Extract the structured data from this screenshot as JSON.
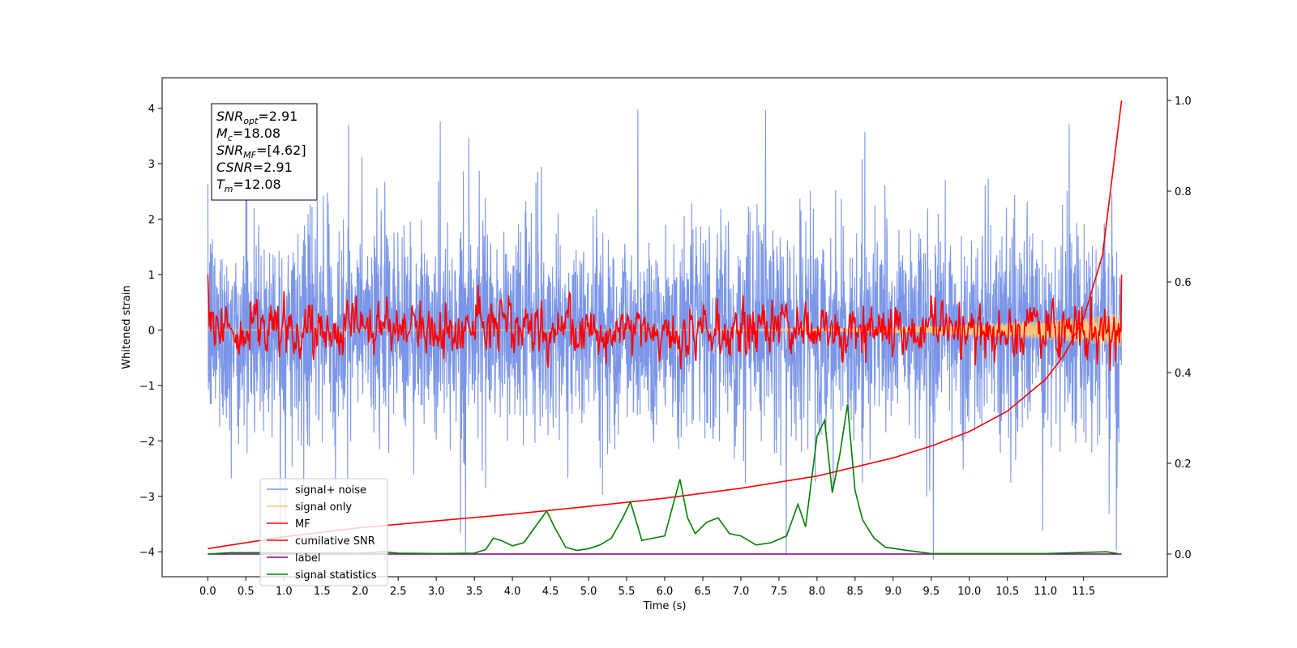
{
  "chart_data": {
    "type": "line",
    "xlabel": "Time (s)",
    "ylabel": "Whitened strain",
    "xlim": [
      -0.6,
      12.6
    ],
    "ylim": [
      -4.45,
      4.55
    ],
    "y2lim": [
      -0.05,
      1.05
    ],
    "x_ticks": [
      "0.0",
      "0.5",
      "1.0",
      "1.5",
      "2.0",
      "2.5",
      "3.0",
      "3.5",
      "4.0",
      "4.5",
      "5.0",
      "5.5",
      "6.0",
      "6.5",
      "7.0",
      "7.5",
      "8.0",
      "8.5",
      "9.0",
      "9.5",
      "10.0",
      "10.5",
      "11.0",
      "11.5"
    ],
    "y_ticks": [
      "4",
      "3",
      "2",
      "1",
      "0",
      "−1",
      "−2",
      "−3",
      "−4"
    ],
    "y2_ticks": [
      "1.0",
      "0.8",
      "0.6",
      "0.4",
      "0.2",
      "0.0"
    ],
    "info_box": [
      {
        "sym": "SNR",
        "sub": "opt",
        "val": "=2.91"
      },
      {
        "sym": "M",
        "sub": "c",
        "val": "=18.08"
      },
      {
        "sym": "SNR",
        "sub": "MF",
        "val": "=[4.62]"
      },
      {
        "sym": "CSNR",
        "sub": "",
        "val": "=2.91"
      },
      {
        "sym": "T",
        "sub": "m",
        "val": "=12.08"
      }
    ],
    "legend_position": "lower-left",
    "series": [
      {
        "name": "signal+ noise",
        "color": "#7b96e8",
        "axis": "left",
        "t_range": [
          0,
          12.0
        ],
        "std": 0.95,
        "peak_max": 4.15
      },
      {
        "name": "signal only",
        "color": "#f5c77e",
        "axis": "left",
        "t_range": [
          0,
          12.0
        ],
        "envelope_end": 0.3
      },
      {
        "name": "MF",
        "color": "#ff0000",
        "axis": "left",
        "t_range": [
          0,
          12.0
        ],
        "std": 0.22,
        "start": 1.0,
        "end": 1.0
      },
      {
        "name": "cumilative SNR",
        "color": "#ff0000",
        "axis": "right",
        "x": [
          0,
          1,
          2,
          3,
          4,
          5,
          6,
          7,
          8,
          9,
          9.5,
          10,
          10.5,
          11,
          11.25,
          11.5,
          11.75,
          12.0
        ],
        "y": [
          0.012,
          0.038,
          0.058,
          0.073,
          0.088,
          0.105,
          0.123,
          0.145,
          0.172,
          0.212,
          0.238,
          0.27,
          0.315,
          0.385,
          0.44,
          0.52,
          0.66,
          1.0
        ]
      },
      {
        "name": "label",
        "color": "#800080",
        "axis": "right",
        "x": [
          0,
          12.0
        ],
        "y": [
          0.0,
          0.0
        ]
      },
      {
        "name": "signal statistics",
        "color": "#008000",
        "axis": "right",
        "x": [
          0,
          0.3,
          1.0,
          2.0,
          2.3,
          2.5,
          3.0,
          3.5,
          3.65,
          3.75,
          3.85,
          4.0,
          4.15,
          4.3,
          4.45,
          4.55,
          4.7,
          4.85,
          5.0,
          5.15,
          5.3,
          5.45,
          5.55,
          5.7,
          5.85,
          6.0,
          6.2,
          6.3,
          6.4,
          6.55,
          6.7,
          6.85,
          7.0,
          7.2,
          7.4,
          7.6,
          7.75,
          7.85,
          8.0,
          8.1,
          8.2,
          8.3,
          8.4,
          8.5,
          8.6,
          8.75,
          8.9,
          9.1,
          9.5,
          11.0,
          11.8,
          11.95
        ],
        "y": [
          0.0,
          0.003,
          0.003,
          0.002,
          0.005,
          0.002,
          0.001,
          0.002,
          0.01,
          0.035,
          0.03,
          0.018,
          0.025,
          0.06,
          0.095,
          0.06,
          0.015,
          0.008,
          0.012,
          0.02,
          0.035,
          0.08,
          0.115,
          0.03,
          0.035,
          0.04,
          0.165,
          0.08,
          0.045,
          0.07,
          0.08,
          0.045,
          0.04,
          0.02,
          0.025,
          0.04,
          0.11,
          0.06,
          0.26,
          0.295,
          0.135,
          0.22,
          0.33,
          0.14,
          0.075,
          0.035,
          0.015,
          0.01,
          0.001,
          0.001,
          0.005,
          0.001
        ]
      }
    ]
  }
}
